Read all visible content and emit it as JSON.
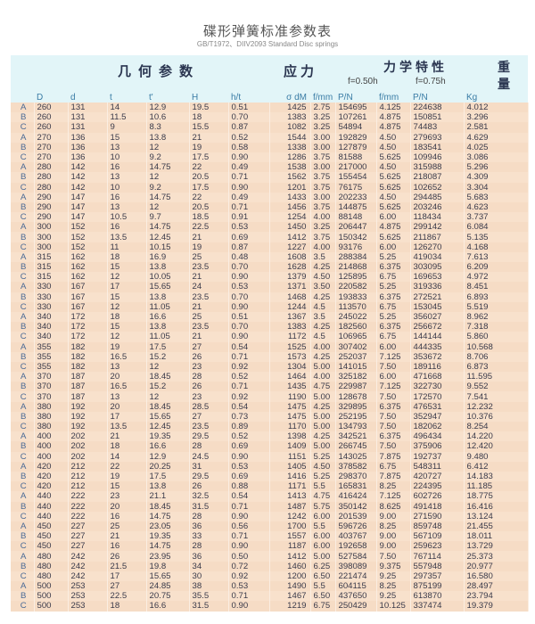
{
  "title": "碟形弹簧标准参数表",
  "subtitle": "GB/T1972、DIIV2093  Standard  Disc springs",
  "groups": {
    "geometry": "几何参数",
    "stress": "应力",
    "mechanical": "力学特性",
    "weight_1": "重",
    "weight_2": "量",
    "f050": "f=0.50h",
    "f075": "f=0.75h"
  },
  "columns": [
    "",
    "D",
    "d",
    "t",
    "t'",
    "H",
    "h/t",
    "σ dM",
    "f/mm",
    "P/N",
    "f/mm",
    "P/N",
    "Kg"
  ],
  "rows": [
    [
      "A",
      "260",
      "131",
      "14",
      "12.9",
      "19.5",
      "0.51",
      "1425",
      "2.75",
      "154695",
      "4.125",
      "224638",
      "4.012"
    ],
    [
      "B",
      "260",
      "131",
      "11.5",
      "10.6",
      "18",
      "0.70",
      "1383",
      "3.25",
      "107261",
      "4.875",
      "150851",
      "3.296"
    ],
    [
      "C",
      "260",
      "131",
      "9",
      "8.3",
      "15.5",
      "0.87",
      "1082",
      "3.25",
      "54894",
      "4.875",
      "74483",
      "2.581"
    ],
    [
      "A",
      "270",
      "136",
      "15",
      "13.8",
      "21",
      "0.52",
      "1544",
      "3.00",
      "192829",
      "4.50",
      "279693",
      "4.629"
    ],
    [
      "B",
      "270",
      "136",
      "13",
      "12",
      "19",
      "0.58",
      "1338",
      "3.00",
      "127879",
      "4.50",
      "183541",
      "4.025"
    ],
    [
      "C",
      "270",
      "136",
      "10",
      "9.2",
      "17.5",
      "0.90",
      "1286",
      "3.75",
      "81588",
      "5.625",
      "109946",
      "3.086"
    ],
    [
      "A",
      "280",
      "142",
      "16",
      "14.75",
      "22",
      "0.49",
      "1538",
      "3.00",
      "217000",
      "4.50",
      "315988",
      "5.296"
    ],
    [
      "B",
      "280",
      "142",
      "13",
      "12",
      "20.5",
      "0.71",
      "1562",
      "3.75",
      "155454",
      "5.625",
      "218087",
      "4.309"
    ],
    [
      "C",
      "280",
      "142",
      "10",
      "9.2",
      "17.5",
      "0.90",
      "1201",
      "3.75",
      "76175",
      "5.625",
      "102652",
      "3.304"
    ],
    [
      "A",
      "290",
      "147",
      "16",
      "14.75",
      "22",
      "0.49",
      "1433",
      "3.00",
      "202233",
      "4.50",
      "294485",
      "5.683"
    ],
    [
      "B",
      "290",
      "147",
      "13",
      "12",
      "20.5",
      "0.71",
      "1456",
      "3.75",
      "144875",
      "5.625",
      "203246",
      "4.623"
    ],
    [
      "C",
      "290",
      "147",
      "10.5",
      "9.7",
      "18.5",
      "0.91",
      "1254",
      "4.00",
      "88148",
      "6.00",
      "118434",
      "3.737"
    ],
    [
      "A",
      "300",
      "152",
      "16",
      "14.75",
      "22.5",
      "0.53",
      "1450",
      "3.25",
      "206447",
      "4.875",
      "299142",
      "6.084"
    ],
    [
      "B",
      "300",
      "152",
      "13.5",
      "12.45",
      "21",
      "0.69",
      "1412",
      "3.75",
      "150342",
      "5.625",
      "211867",
      "5.135"
    ],
    [
      "C",
      "300",
      "152",
      "11",
      "10.15",
      "19",
      "0.87",
      "1227",
      "4.00",
      "93176",
      "6.00",
      "126270",
      "4.168"
    ],
    [
      "A",
      "315",
      "162",
      "18",
      "16.9",
      "25",
      "0.48",
      "1608",
      "3.5",
      "288384",
      "5.25",
      "419034",
      "7.613"
    ],
    [
      "B",
      "315",
      "162",
      "15",
      "13.8",
      "23.5",
      "0.70",
      "1628",
      "4.25",
      "214868",
      "6.375",
      "303095",
      "6.209"
    ],
    [
      "C",
      "315",
      "162",
      "12",
      "10.05",
      "21",
      "0.90",
      "1379",
      "4.50",
      "125895",
      "6.75",
      "169653",
      "4.972"
    ],
    [
      "A",
      "330",
      "167",
      "17",
      "15.65",
      "24",
      "0.53",
      "1371",
      "3.50",
      "220582",
      "5.25",
      "319336",
      "8.451"
    ],
    [
      "B",
      "330",
      "167",
      "15",
      "13.8",
      "23.5",
      "0.70",
      "1468",
      "4.25",
      "193833",
      "6.375",
      "272521",
      "6.893"
    ],
    [
      "C",
      "330",
      "167",
      "12",
      "11.05",
      "21",
      "0.90",
      "1244",
      "4.5",
      "113570",
      "6.75",
      "153045",
      "5.519"
    ],
    [
      "A",
      "340",
      "172",
      "18",
      "16.6",
      "25",
      "0.51",
      "1367",
      "3.5",
      "245022",
      "5.25",
      "356027",
      "8.962"
    ],
    [
      "B",
      "340",
      "172",
      "15",
      "13.8",
      "23.5",
      "0.70",
      "1383",
      "4.25",
      "182560",
      "6.375",
      "256672",
      "7.318"
    ],
    [
      "C",
      "340",
      "172",
      "12",
      "11.05",
      "21",
      "0.90",
      "1172",
      "4.5",
      "106965",
      "6.75",
      "144144",
      "5.860"
    ],
    [
      "A",
      "355",
      "182",
      "19",
      "17.5",
      "27",
      "0.54",
      "1525",
      "4.00",
      "307402",
      "6.00",
      "444335",
      "10.568"
    ],
    [
      "B",
      "355",
      "182",
      "16.5",
      "15.2",
      "26",
      "0.71",
      "1573",
      "4.25",
      "252037",
      "7.125",
      "353672",
      "8.706"
    ],
    [
      "C",
      "355",
      "182",
      "13",
      "12",
      "23",
      "0.92",
      "1304",
      "5.00",
      "141015",
      "7.50",
      "189116",
      "6.873"
    ],
    [
      "A",
      "370",
      "187",
      "20",
      "18.45",
      "28",
      "0.52",
      "1464",
      "4.00",
      "325182",
      "6.00",
      "471668",
      "11.595"
    ],
    [
      "B",
      "370",
      "187",
      "16.5",
      "15.2",
      "26",
      "0.71",
      "1435",
      "4.75",
      "229987",
      "7.125",
      "322730",
      "9.552"
    ],
    [
      "C",
      "370",
      "187",
      "13",
      "12",
      "23",
      "0.92",
      "1190",
      "5.00",
      "128678",
      "7.50",
      "172570",
      "7.541"
    ],
    [
      "A",
      "380",
      "192",
      "20",
      "18.45",
      "28.5",
      "0.54",
      "1475",
      "4.25",
      "329895",
      "6.375",
      "476531",
      "12.232"
    ],
    [
      "B",
      "380",
      "192",
      "17",
      "15.65",
      "27",
      "0.73",
      "1475",
      "5.00",
      "252195",
      "7.50",
      "352947",
      "10.376"
    ],
    [
      "C",
      "380",
      "192",
      "13.5",
      "12.45",
      "23.5",
      "0.89",
      "1170",
      "5.00",
      "134793",
      "7.50",
      "182062",
      "8.254"
    ],
    [
      "A",
      "400",
      "202",
      "21",
      "19.35",
      "29.5",
      "0.52",
      "1398",
      "4.25",
      "342521",
      "6.375",
      "496434",
      "14.220"
    ],
    [
      "B",
      "400",
      "202",
      "18",
      "16.6",
      "28",
      "0.69",
      "1409",
      "5.00",
      "266745",
      "7.50",
      "375906",
      "12.420"
    ],
    [
      "C",
      "400",
      "202",
      "14",
      "12.9",
      "24.5",
      "0.90",
      "1151",
      "5.25",
      "143025",
      "7.875",
      "192737",
      "9.480"
    ],
    [
      "A",
      "420",
      "212",
      "22",
      "20.25",
      "31",
      "0.53",
      "1405",
      "4.50",
      "378582",
      "6.75",
      "548311",
      "6.412"
    ],
    [
      "B",
      "420",
      "212",
      "19",
      "17.5",
      "29.5",
      "0.69",
      "1416",
      "5.25",
      "298370",
      "7.875",
      "420727",
      "14.183"
    ],
    [
      "C",
      "420",
      "212",
      "15",
      "13.8",
      "26",
      "0.88",
      "1171",
      "5.5",
      "165831",
      "8.25",
      "224395",
      "11.185"
    ],
    [
      "A",
      "440",
      "222",
      "23",
      "21.1",
      "32.5",
      "0.54",
      "1413",
      "4.75",
      "416424",
      "7.125",
      "602726",
      "18.775"
    ],
    [
      "B",
      "440",
      "222",
      "20",
      "18.45",
      "31.5",
      "0.71",
      "1487",
      "5.75",
      "350142",
      "8.625",
      "491418",
      "16.416"
    ],
    [
      "C",
      "440",
      "222",
      "16",
      "14.75",
      "28",
      "0.90",
      "1242",
      "6.00",
      "201539",
      "9.00",
      "271590",
      "13.124"
    ],
    [
      "A",
      "450",
      "227",
      "25",
      "23.05",
      "36",
      "0.56",
      "1700",
      "5.5",
      "596726",
      "8.25",
      "859748",
      "21.455"
    ],
    [
      "B",
      "450",
      "227",
      "21",
      "19.35",
      "33",
      "0.71",
      "1557",
      "6.00",
      "403767",
      "9.00",
      "567109",
      "18.011"
    ],
    [
      "C",
      "450",
      "227",
      "16",
      "14.75",
      "28",
      "0.90",
      "1187",
      "6.00",
      "192658",
      "9.00",
      "259623",
      "13.729"
    ],
    [
      "A",
      "480",
      "242",
      "26",
      "23.95",
      "36",
      "0.50",
      "1412",
      "5.00",
      "527584",
      "7.50",
      "767114",
      "25.373"
    ],
    [
      "B",
      "480",
      "242",
      "21.5",
      "19.8",
      "34",
      "0.72",
      "1460",
      "6.25",
      "398089",
      "9.375",
      "557948",
      "20.977"
    ],
    [
      "C",
      "480",
      "242",
      "17",
      "15.65",
      "30",
      "0.92",
      "1200",
      "6.50",
      "221474",
      "9.25",
      "297357",
      "16.580"
    ],
    [
      "A",
      "500",
      "253",
      "27",
      "24.85",
      "38",
      "0.53",
      "1490",
      "5.5",
      "604115",
      "8.25",
      "875199",
      "28.497"
    ],
    [
      "B",
      "500",
      "253",
      "22.5",
      "20.75",
      "35.5",
      "0.71",
      "1467",
      "6.50",
      "437650",
      "9.25",
      "613870",
      "23.794"
    ],
    [
      "C",
      "500",
      "253",
      "18",
      "16.6",
      "31.5",
      "0.90",
      "1219",
      "6.75",
      "250429",
      "10.125",
      "337474",
      "19.379"
    ]
  ]
}
